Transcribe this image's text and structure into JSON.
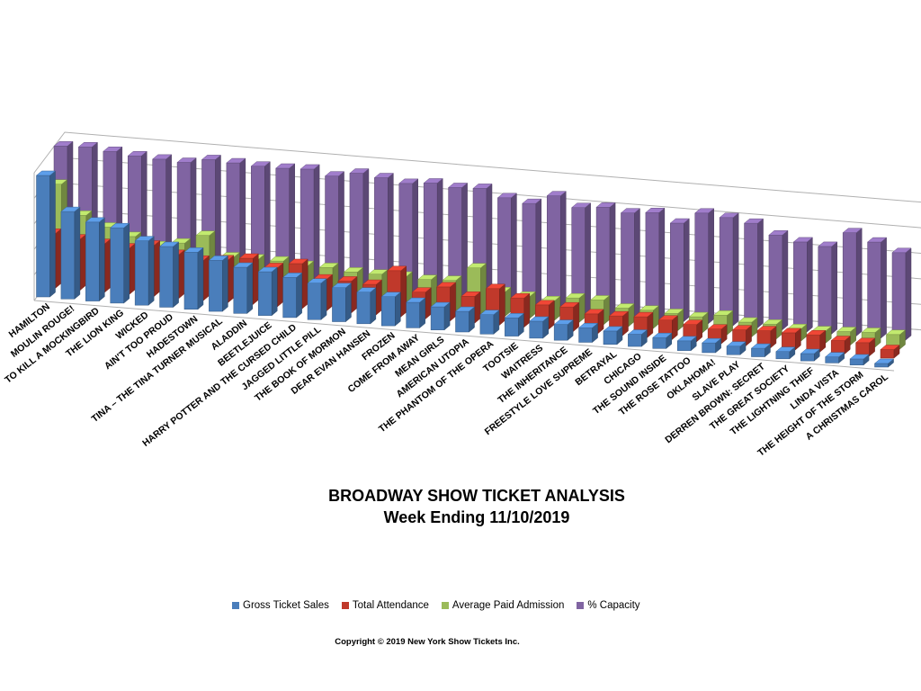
{
  "chart_data": {
    "type": "bar",
    "title": "BROADWAY SHOW TICKET ANALYSIS",
    "subtitle": "Week Ending 11/10/2019",
    "categories": [
      "HAMILTON",
      "MOULIN ROUGE!",
      "TO KILL A MOCKINGBIRD",
      "THE LION KING",
      "WICKED",
      "AIN'T TOO PROUD",
      "HADESTOWN",
      "TINA – THE TINA TURNER MUSICAL",
      "ALADDIN",
      "BEETLEJUICE",
      "HARRY POTTER AND THE CURSED CHILD",
      "JAGGED LITTLE PILL",
      "THE BOOK OF MORMON",
      "DEAR EVAN HANSEN",
      "FROZEN",
      "COME FROM AWAY",
      "MEAN GIRLS",
      "AMERICAN UTOPIA",
      "THE PHANTOM OF THE OPERA",
      "TOOTSIE",
      "WAITRESS",
      "THE INHERITANCE",
      "FREESTYLE LOVE SUPREME",
      "BETRAYAL",
      "CHICAGO",
      "THE SOUND INSIDE",
      "THE ROSE TATTOO",
      "OKLAHOMA!",
      "SLAVE PLAY",
      "DERREN BROWN: SECRET",
      "THE GREAT SOCIETY",
      "THE LIGHTNING THIEF",
      "LINDA VISTA",
      "THE HEIGHT OF THE STORM",
      "A CHRISTMAS CAROL"
    ],
    "series": [
      {
        "name": "Gross Ticket Sales",
        "color": "#4a7ebb",
        "values": [
          100,
          72,
          65,
          62,
          53,
          50,
          47,
          42,
          38,
          36,
          33,
          30,
          28,
          26,
          24,
          21,
          19,
          17,
          16,
          15,
          14,
          13,
          12,
          11,
          10,
          9,
          8,
          8,
          7,
          7,
          6,
          6,
          5,
          5,
          3
        ]
      },
      {
        "name": "Total Attendance",
        "color": "#c0392b",
        "values": [
          45,
          42,
          40,
          38,
          42,
          36,
          33,
          35,
          38,
          32,
          37,
          26,
          26,
          25,
          38,
          22,
          28,
          22,
          30,
          24,
          20,
          20,
          16,
          16,
          17,
          16,
          14,
          12,
          13,
          14,
          14,
          14,
          11,
          11,
          7
        ]
      },
      {
        "name": "Average Paid Admission",
        "color": "#9bbb59",
        "values": [
          78,
          54,
          46,
          40,
          34,
          38,
          46,
          30,
          30,
          30,
          28,
          28,
          26,
          26,
          26,
          25,
          26,
          38,
          20,
          18,
          16,
          20,
          20,
          15,
          15,
          14,
          13,
          16,
          12,
          12,
          10,
          10,
          11,
          12,
          12
        ]
      },
      {
        "name": "% Capacity",
        "color": "#8064a2",
        "values": [
          102,
          103,
          101,
          99,
          98,
          97,
          101,
          100,
          99,
          99,
          100,
          96,
          100,
          98,
          95,
          97,
          95,
          96,
          90,
          87,
          95,
          87,
          89,
          86,
          88,
          81,
          91,
          89,
          86,
          78,
          74,
          72,
          85,
          79,
          72
        ]
      }
    ]
  },
  "copyright": "Copyright © 2019 New York Show Tickets Inc."
}
